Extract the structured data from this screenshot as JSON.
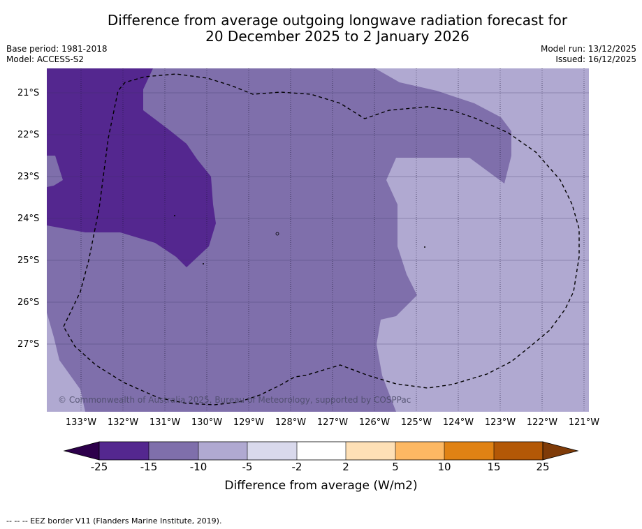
{
  "title": {
    "line1": "Difference from average outgoing longwave radiation forecast for",
    "line2": "20 December 2025 to 2 January 2026"
  },
  "meta": {
    "base_period": "Base period: 1981-2018",
    "model": "Model: ACCESS-S2",
    "model_run": "Model run: 13/12/2025",
    "issued": "Issued: 16/12/2025"
  },
  "map": {
    "copyright": "© Commonwealth of Australia 2025, Bureau of Meteorology, supported by COSPPac",
    "latitudes": [
      "21°S",
      "22°S",
      "23°S",
      "24°S",
      "25°S",
      "26°S",
      "27°S"
    ],
    "longitudes": [
      "133°W",
      "132°W",
      "131°W",
      "130°W",
      "129°W",
      "128°W",
      "127°W",
      "126°W",
      "125°W",
      "124°W",
      "123°W",
      "122°W",
      "121°W"
    ],
    "category_colors": {
      "lt_-15": "#54278f",
      "-15_-10": "#7f6fab",
      "-10_-5": "#b0a9d1"
    },
    "eez_border": "dashed"
  },
  "colorbar": {
    "ticks": [
      "-25",
      "-15",
      "-10",
      "-5",
      "-2",
      "2",
      "5",
      "10",
      "15",
      "25"
    ],
    "colors": [
      "#2d004b",
      "#54278f",
      "#7f6fab",
      "#b0a9d1",
      "#d9d9ec",
      "#ffffff",
      "#fee0b6",
      "#fdb863",
      "#e08214",
      "#b35806",
      "#7f3b08"
    ],
    "label": "Difference from average (W/m2)"
  },
  "footnote": "-- -- -- EEZ border V11 (Flanders Marine Institute, 2019)."
}
